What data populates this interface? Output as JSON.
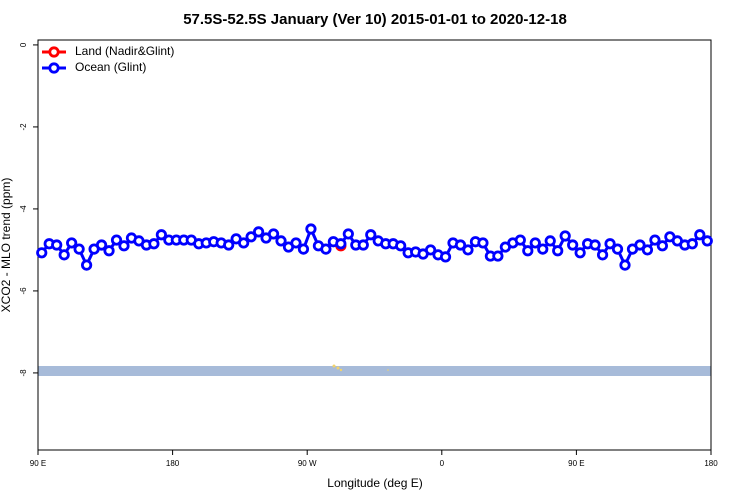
{
  "chart_data": {
    "type": "line",
    "title": "57.5S-52.5S January (Ver 10)   2015-01-01 to 2020-12-18",
    "xlabel": "Longitude (deg E)",
    "ylabel": "XCO2 - MLO trend (ppm)",
    "xlim": [
      90,
      540
    ],
    "ylim": [
      -9.88,
      0.12
    ],
    "xticks": [
      {
        "value": 90,
        "label": "90 E"
      },
      180,
      {
        "value": 270,
        "label": "90 W"
      },
      {
        "value": 360,
        "label": "0"
      },
      {
        "value": 450,
        "label": "90 E"
      },
      {
        "value": 540,
        "label": "180"
      }
    ],
    "yticks": [
      0,
      -2,
      -4,
      -6,
      -8
    ],
    "grid": false,
    "legend": "top-left",
    "series": [
      {
        "name": "Land (Nadir&Glint)",
        "color": "#ff0000",
        "x": [
          292.5
        ],
        "values": [
          -4.9
        ]
      },
      {
        "name": "Ocean (Glint)",
        "color": "#0000ff",
        "x": [
          92.5,
          97.5,
          102.5,
          107.5,
          112.5,
          117.5,
          122.5,
          127.5,
          132.5,
          137.5,
          142.5,
          147.5,
          152.5,
          157.5,
          162.5,
          167.5,
          172.5,
          177.5,
          182.5,
          187.5,
          192.5,
          197.5,
          202.5,
          207.5,
          212.5,
          217.5,
          222.5,
          227.5,
          232.5,
          237.5,
          242.5,
          247.5,
          252.5,
          257.5,
          262.5,
          267.5,
          272.5,
          277.5,
          282.5,
          287.5,
          292.5,
          297.5,
          302.5,
          307.5,
          312.5,
          317.5,
          322.5,
          327.5,
          332.5,
          337.5,
          342.5,
          347.5,
          352.5,
          357.5,
          362.5,
          367.5,
          372.5,
          377.5,
          382.5,
          387.5,
          392.5,
          397.5,
          402.5,
          407.5,
          412.5,
          417.5,
          422.5,
          427.5,
          432.5,
          437.5,
          442.5,
          447.5,
          452.5,
          457.5,
          462.5,
          467.5,
          472.5,
          477.5,
          482.5,
          487.5,
          492.5,
          497.5,
          502.5,
          507.5,
          512.5,
          517.5,
          522.5,
          527.5,
          532.5,
          537.5
        ],
        "values": [
          -5.07,
          -4.85,
          -4.88,
          -5.12,
          -4.83,
          -4.98,
          -5.37,
          -4.98,
          -4.88,
          -5.02,
          -4.76,
          -4.9,
          -4.71,
          -4.78,
          -4.88,
          -4.85,
          -4.63,
          -4.76,
          -4.76,
          -4.76,
          -4.76,
          -4.85,
          -4.83,
          -4.8,
          -4.83,
          -4.88,
          -4.73,
          -4.83,
          -4.68,
          -4.56,
          -4.71,
          -4.61,
          -4.78,
          -4.93,
          -4.83,
          -4.98,
          -4.49,
          -4.9,
          -4.98,
          -4.8,
          -4.85,
          -4.61,
          -4.88,
          -4.88,
          -4.63,
          -4.78,
          -4.85,
          -4.85,
          -4.9,
          -5.07,
          -5.05,
          -5.1,
          -5.0,
          -5.12,
          -5.17,
          -4.83,
          -4.88,
          -5.0,
          -4.8,
          -4.83,
          -5.15,
          -5.15,
          -4.93,
          -4.83,
          -4.76,
          -5.02,
          -4.83,
          -4.98,
          -4.78,
          -5.02,
          -4.66,
          -4.88,
          -5.07,
          -4.85,
          -4.88,
          -5.12,
          -4.85,
          -4.98,
          -5.37,
          -4.98,
          -4.88,
          -5.0,
          -4.76,
          -4.9,
          -4.68,
          -4.78,
          -4.88,
          -4.85,
          -4.63,
          -4.78
        ]
      }
    ]
  }
}
